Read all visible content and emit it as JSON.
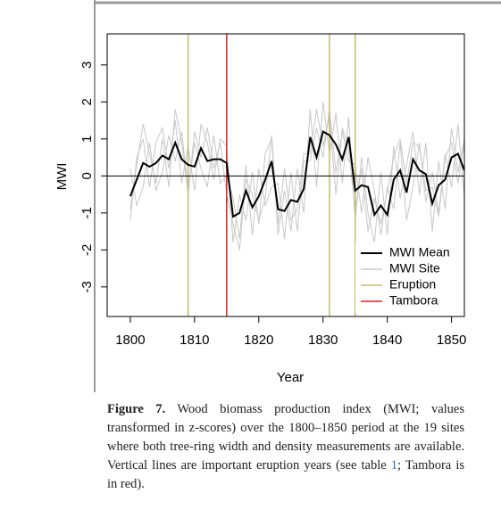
{
  "chart_data": {
    "type": "line",
    "x_label": "Year",
    "y_label": "MWI",
    "x": [
      1800,
      1801,
      1802,
      1803,
      1804,
      1805,
      1806,
      1807,
      1808,
      1809,
      1810,
      1811,
      1812,
      1813,
      1814,
      1815,
      1816,
      1817,
      1818,
      1819,
      1820,
      1821,
      1822,
      1823,
      1824,
      1825,
      1826,
      1827,
      1828,
      1829,
      1830,
      1831,
      1832,
      1833,
      1834,
      1835,
      1836,
      1837,
      1838,
      1839,
      1840,
      1841,
      1842,
      1843,
      1844,
      1845,
      1846,
      1847,
      1848,
      1849,
      1850,
      1851,
      1852
    ],
    "series": [
      {
        "name": "MWI Mean",
        "color": "#000000",
        "values": [
          -0.55,
          -0.1,
          0.35,
          0.25,
          0.35,
          0.55,
          0.45,
          0.9,
          0.45,
          0.3,
          0.25,
          0.75,
          0.4,
          0.45,
          0.45,
          0.35,
          -1.1,
          -1.0,
          -0.4,
          -0.85,
          -0.55,
          -0.1,
          0.4,
          -0.9,
          -0.95,
          -0.65,
          -0.7,
          -0.35,
          1.05,
          0.5,
          1.2,
          1.1,
          0.85,
          0.45,
          1.05,
          -0.4,
          -0.25,
          -0.3,
          -1.05,
          -0.8,
          -1.05,
          -0.1,
          0.15,
          -0.45,
          0.45,
          0.15,
          0.05,
          -0.75,
          -0.25,
          -0.1,
          0.5,
          0.6,
          0.15
        ]
      },
      {
        "name": "MWI Site",
        "color": "#c8c8c8",
        "lines": [
          [
            -1.2,
            0.5,
            1.0,
            -0.3,
            0.9,
            1.3,
            0.2,
            1.5,
            -0.2,
            0.8,
            -0.4,
            1.4,
            0.9,
            -0.1,
            1.0,
            0.8,
            -1.8,
            -0.5,
            -1.2,
            0.1,
            -1.3,
            0.6,
            1.0,
            -1.6,
            -0.4,
            -1.5,
            0.2,
            -1.0,
            1.8,
            -0.3,
            2.0,
            0.6,
            1.7,
            -0.2,
            1.6,
            -1.2,
            0.5,
            -1.0,
            -1.8,
            0.1,
            -1.6,
            0.8,
            -0.6,
            0.3,
            1.2,
            -0.5,
            0.9,
            -1.5,
            0.4,
            -0.9,
            1.3,
            0.1,
            1.0
          ],
          [
            0.2,
            -0.8,
            -0.3,
            0.9,
            -0.4,
            0.1,
            1.1,
            0.4,
            1.2,
            -0.4,
            0.9,
            0.2,
            -0.3,
            1.1,
            -0.2,
            0.0,
            -0.6,
            -1.7,
            0.3,
            -1.6,
            0.2,
            -0.8,
            -0.3,
            -0.2,
            -1.7,
            0.1,
            -1.5,
            0.4,
            0.4,
            1.3,
            0.5,
            1.8,
            0.1,
            1.2,
            0.4,
            0.3,
            -1.0,
            0.5,
            -0.4,
            -1.6,
            -0.3,
            -0.9,
            0.9,
            -1.2,
            -0.3,
            0.9,
            -0.7,
            0.1,
            -1.0,
            0.6,
            -0.3,
            1.4,
            -0.6
          ],
          [
            -0.9,
            0.3,
            1.4,
            0.6,
            -0.2,
            1.0,
            -0.3,
            1.8,
            0.9,
            -0.5,
            1.2,
            0.5,
            1.3,
            0.2,
            0.9,
            -0.5,
            -1.3,
            -2.0,
            -0.1,
            -0.5,
            -1.2,
            -0.6,
            1.1,
            -1.3,
            0.2,
            -1.2,
            -0.9,
            0.6,
            0.6,
            1.8,
            0.8,
            1.6,
            -0.5,
            1.3,
            0.7,
            -0.9,
            0.2,
            -1.5,
            -0.6,
            -1.3,
            -0.4,
            0.5,
            1.0,
            -0.2,
            0.9,
            0.8,
            -0.4,
            -0.3,
            -1.1,
            0.5,
            0.9,
            -0.2,
            0.9
          ]
        ]
      }
    ],
    "vlines": [
      {
        "name": "Eruption",
        "color": "#c9b86a",
        "x": [
          1809,
          1831,
          1835
        ]
      },
      {
        "name": "Tambora",
        "color": "#e02020",
        "x": [
          1815
        ]
      }
    ],
    "hline": 0,
    "xlim": [
      1796.4,
      1852
    ],
    "ylim": [
      -3.8,
      3.84
    ],
    "xticks": [
      1800,
      1810,
      1820,
      1830,
      1840,
      1850
    ],
    "yticks": [
      -3,
      -2,
      -1,
      0,
      1,
      2,
      3
    ],
    "legend": "bottom-right"
  },
  "caption": {
    "label": "Figure 7.",
    "text_before": "Wood biomass production index (MWI; values transformed in z-scores) over the 1800–1850 period at the 19 sites where both tree-ring width and density measurements are available. Vertical lines are important eruption years (see table ",
    "link": "1",
    "text_after": "; Tambora is in red)."
  }
}
